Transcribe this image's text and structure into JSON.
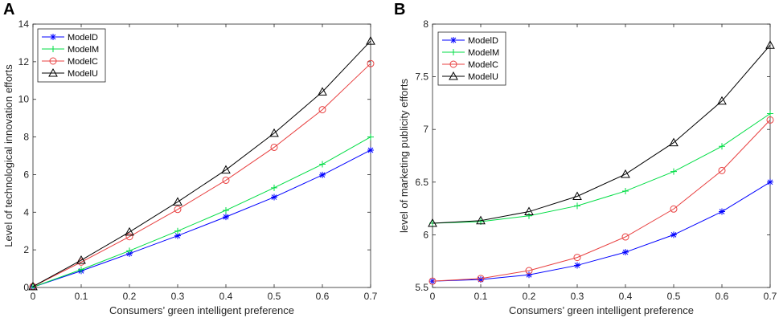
{
  "chart_data": [
    {
      "panel_label": "A",
      "type": "line",
      "title": "",
      "xlabel": "Consumers’ green intelligent preference",
      "ylabel": "Level of technological innovation efforts",
      "x": [
        0,
        0.1,
        0.2,
        0.3,
        0.4,
        0.5,
        0.6,
        0.7
      ],
      "xlim": [
        0,
        0.7
      ],
      "ylim": [
        0,
        14
      ],
      "xticks": [
        0,
        0.1,
        0.2,
        0.3,
        0.4,
        0.5,
        0.6,
        0.7
      ],
      "xtick_labels": [
        "0",
        "0.1",
        "0.2",
        "0.3",
        "0.4",
        "0.5",
        "0.6",
        "0.7"
      ],
      "yticks": [
        0,
        2,
        4,
        6,
        8,
        10,
        12,
        14
      ],
      "ytick_labels": [
        "0",
        "2",
        "4",
        "6",
        "8",
        "10",
        "12",
        "14"
      ],
      "grid": false,
      "legend_position": "top-left",
      "series": [
        {
          "name": "ModelD",
          "color": "#0000ff",
          "marker": "asterisk",
          "values": [
            0.02,
            0.88,
            1.8,
            2.75,
            3.75,
            4.8,
            5.98,
            7.3
          ]
        },
        {
          "name": "ModelM",
          "color": "#00dd44",
          "marker": "plus",
          "values": [
            0.02,
            0.95,
            1.95,
            3.0,
            4.1,
            5.3,
            6.55,
            8.0
          ]
        },
        {
          "name": "ModelC",
          "color": "#e84040",
          "marker": "circle",
          "values": [
            0.05,
            1.35,
            2.7,
            4.15,
            5.7,
            7.45,
            9.45,
            11.9
          ]
        },
        {
          "name": "ModelU",
          "color": "#000000",
          "marker": "triangle",
          "values": [
            0.05,
            1.45,
            2.95,
            4.55,
            6.25,
            8.2,
            10.4,
            13.1
          ]
        }
      ]
    },
    {
      "panel_label": "B",
      "type": "line",
      "title": "",
      "xlabel": "Consumers’ green intelligent preference",
      "ylabel": "level of marketing publicity efforts",
      "x": [
        0,
        0.1,
        0.2,
        0.3,
        0.4,
        0.5,
        0.6,
        0.7
      ],
      "xlim": [
        0,
        0.7
      ],
      "ylim": [
        5.5,
        8
      ],
      "xticks": [
        0,
        0.1,
        0.2,
        0.3,
        0.4,
        0.5,
        0.6,
        0.7
      ],
      "xtick_labels": [
        "0",
        "0.1",
        "0.2",
        "0.3",
        "0.4",
        "0.5",
        "0.6",
        "0.7"
      ],
      "yticks": [
        5.5,
        6,
        6.5,
        7,
        7.5,
        8
      ],
      "ytick_labels": [
        "5.5",
        "6",
        "6.5",
        "7",
        "7.5",
        "8"
      ],
      "grid": false,
      "legend_position": "top-left",
      "series": [
        {
          "name": "ModelD",
          "color": "#0000ff",
          "marker": "asterisk",
          "values": [
            5.56,
            5.575,
            5.62,
            5.71,
            5.835,
            6.0,
            6.22,
            6.5
          ]
        },
        {
          "name": "ModelM",
          "color": "#00dd44",
          "marker": "plus",
          "values": [
            6.11,
            6.125,
            6.18,
            6.275,
            6.415,
            6.6,
            6.84,
            7.15
          ]
        },
        {
          "name": "ModelC",
          "color": "#e84040",
          "marker": "circle",
          "values": [
            5.56,
            5.585,
            5.66,
            5.785,
            5.98,
            6.245,
            6.61,
            7.09
          ]
        },
        {
          "name": "ModelU",
          "color": "#000000",
          "marker": "triangle",
          "values": [
            6.11,
            6.135,
            6.22,
            6.365,
            6.575,
            6.875,
            7.27,
            7.8
          ]
        }
      ]
    }
  ]
}
